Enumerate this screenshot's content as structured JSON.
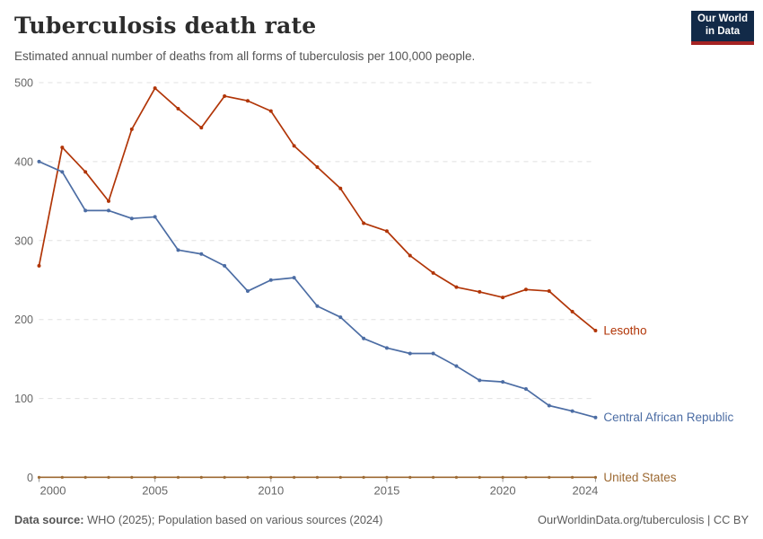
{
  "header": {
    "title": "Tuberculosis death rate",
    "subtitle": "Estimated annual number of deaths from all forms of tuberculosis per 100,000 people."
  },
  "logo": {
    "line1": "Our World",
    "line2": "in Data"
  },
  "footer": {
    "source_label": "Data source:",
    "source_text": " WHO (2025); Population based on various sources (2024)",
    "link_text": "OurWorldinData.org/tuberculosis | CC BY"
  },
  "colors": {
    "lesotho": "#b13507",
    "central_african_republic": "#4c6da4",
    "united_states": "#9d6a33",
    "grid": "#e0e0e0",
    "axis_text": "#666666",
    "logo_bg": "#122a48",
    "logo_stripe": "#a52323"
  },
  "chart_data": {
    "type": "line",
    "title": "Tuberculosis death rate",
    "subtitle": "Estimated annual number of deaths from all forms of tuberculosis per 100,000 people.",
    "xlabel": "",
    "ylabel": "",
    "ylim": [
      0,
      500
    ],
    "yticks": [
      0,
      100,
      200,
      300,
      400,
      500
    ],
    "xticks": [
      2000,
      2005,
      2010,
      2015,
      2020,
      2024
    ],
    "grid": "horizontal-dashed",
    "legend_position": "line-end-labels",
    "x": [
      2000,
      2001,
      2002,
      2003,
      2004,
      2005,
      2006,
      2007,
      2008,
      2009,
      2010,
      2011,
      2012,
      2013,
      2014,
      2015,
      2016,
      2017,
      2018,
      2019,
      2020,
      2021,
      2022,
      2023,
      2024
    ],
    "series": [
      {
        "name": "Lesotho",
        "color": "#b13507",
        "values": [
          268,
          418,
          387,
          350,
          441,
          493,
          467,
          443,
          483,
          477,
          464,
          420,
          393,
          366,
          322,
          312,
          281,
          259,
          241,
          235,
          228,
          238,
          236,
          210,
          186
        ]
      },
      {
        "name": "Central African Republic",
        "color": "#4c6da4",
        "values": [
          400,
          387,
          338,
          338,
          328,
          330,
          288,
          283,
          268,
          236,
          250,
          253,
          217,
          203,
          176,
          164,
          157,
          157,
          141,
          123,
          121,
          112,
          91,
          84,
          76
        ]
      },
      {
        "name": "United States",
        "color": "#9d6a33",
        "values": [
          0.2,
          0.2,
          0.2,
          0.2,
          0.2,
          0.2,
          0.2,
          0.2,
          0.2,
          0.2,
          0.2,
          0.2,
          0.2,
          0.2,
          0.2,
          0.2,
          0.2,
          0.2,
          0.2,
          0.2,
          0.2,
          0.2,
          0.2,
          0.2,
          0.2
        ]
      }
    ]
  }
}
